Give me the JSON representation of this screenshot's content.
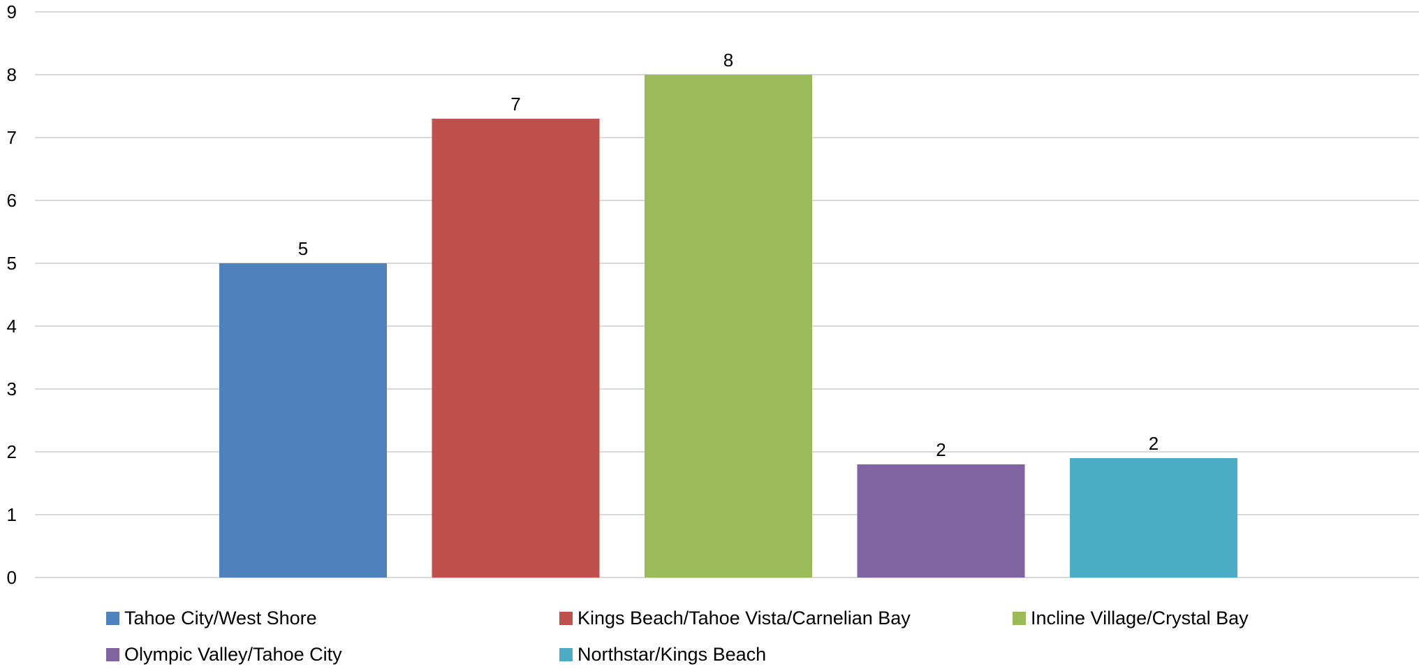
{
  "chart_data": {
    "type": "bar",
    "title": "",
    "xlabel": "",
    "ylabel": "",
    "ylim": [
      0,
      9
    ],
    "y_ticks": [
      "0",
      "1",
      "2",
      "3",
      "4",
      "5",
      "6",
      "7",
      "8",
      "9"
    ],
    "grid": true,
    "legend_position": "bottom",
    "series": [
      {
        "name": "Tahoe City/West Shore",
        "value": 5.0,
        "data_label": "5",
        "color": "#4F81BD"
      },
      {
        "name": "Kings Beach/Tahoe Vista/Carnelian Bay",
        "value": 7.3,
        "data_label": "7",
        "color": "#C0504D"
      },
      {
        "name": "Incline Village/Crystal Bay",
        "value": 8.0,
        "data_label": "8",
        "color": "#9BBB59"
      },
      {
        "name": "Olympic Valley/Tahoe City",
        "value": 1.8,
        "data_label": "2",
        "color": "#8064A2"
      },
      {
        "name": "Northstar/Kings Beach",
        "value": 1.9,
        "data_label": "2",
        "color": "#4BACC6"
      }
    ]
  }
}
